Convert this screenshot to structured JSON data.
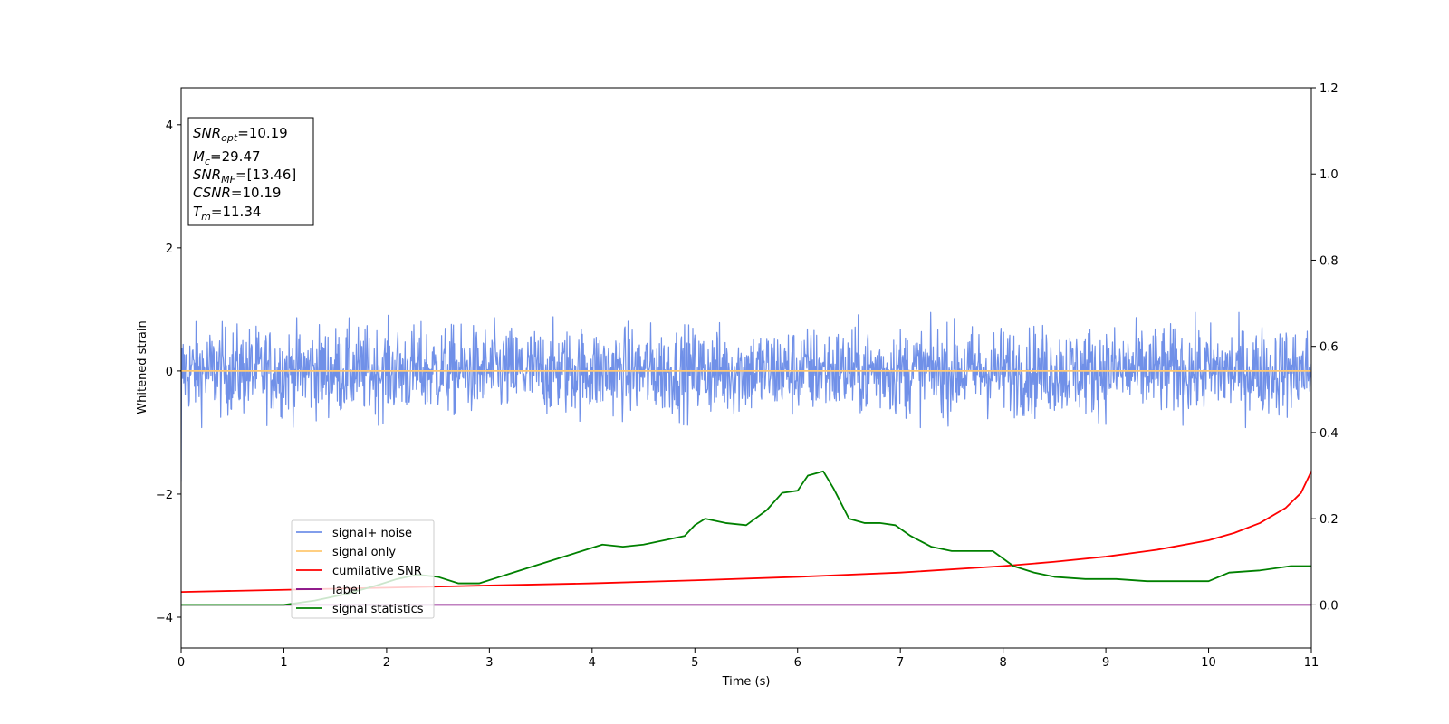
{
  "chart_data": {
    "type": "line",
    "xlabel": "Time (s)",
    "ylabel": "Whitened strain",
    "xlim": [
      0,
      11
    ],
    "ylim_left": [
      -4.5,
      4.6
    ],
    "ylim_right": [
      -0.1,
      1.2
    ],
    "x_ticks": [
      "0",
      "1",
      "2",
      "3",
      "4",
      "5",
      "6",
      "7",
      "8",
      "9",
      "10",
      "11"
    ],
    "y_ticks_left": [
      "4",
      "2",
      "0",
      "−2",
      "−4"
    ],
    "y_ticks_left_values": [
      4,
      2,
      0,
      -2,
      -4
    ],
    "y_ticks_right": [
      "1.2",
      "1.0",
      "0.8",
      "0.6",
      "0.4",
      "0.2",
      "0.0"
    ],
    "y_ticks_right_values": [
      1.2,
      1.0,
      0.8,
      0.6,
      0.4,
      0.2,
      0.0
    ],
    "grid": false,
    "legend_position": "lower-left",
    "series": [
      {
        "name": "signal+ noise",
        "color": "#7090e8",
        "axis": "left",
        "kind": "noise",
        "amplitude": 0.35,
        "peak_max": 0.95,
        "peak_min": -0.92
      },
      {
        "name": "signal only",
        "color": "#ffc870",
        "axis": "left",
        "kind": "flat",
        "value": 0
      },
      {
        "name": "cumilative SNR",
        "color": "#ff0000",
        "axis": "right",
        "x": [
          0,
          1,
          2,
          3,
          4,
          5,
          6,
          7,
          8,
          8.5,
          9,
          9.5,
          10,
          10.25,
          10.5,
          10.75,
          10.9,
          11
        ],
        "y": [
          0.03,
          0.035,
          0.04,
          0.045,
          0.05,
          0.057,
          0.065,
          0.075,
          0.09,
          0.1,
          0.112,
          0.128,
          0.15,
          0.167,
          0.19,
          0.225,
          0.26,
          0.31
        ]
      },
      {
        "name": "label",
        "color": "#800080",
        "axis": "right",
        "x": [
          0,
          11
        ],
        "y": [
          0,
          0
        ]
      },
      {
        "name": "signal statistics",
        "color": "#008000",
        "axis": "right",
        "x": [
          0,
          0.5,
          1,
          1.3,
          1.6,
          1.9,
          2.1,
          2.3,
          2.5,
          2.7,
          2.9,
          3.1,
          3.3,
          3.5,
          3.7,
          3.9,
          4.1,
          4.3,
          4.5,
          4.7,
          4.9,
          5.0,
          5.1,
          5.3,
          5.5,
          5.7,
          5.85,
          6.0,
          6.1,
          6.25,
          6.35,
          6.5,
          6.65,
          6.8,
          6.95,
          7.1,
          7.3,
          7.5,
          7.7,
          7.9,
          8.1,
          8.3,
          8.5,
          8.8,
          9.1,
          9.4,
          9.7,
          10.0,
          10.2,
          10.5,
          10.8,
          11
        ],
        "y": [
          0,
          0,
          0.0,
          0.01,
          0.025,
          0.045,
          0.06,
          0.07,
          0.065,
          0.05,
          0.05,
          0.065,
          0.08,
          0.095,
          0.11,
          0.125,
          0.14,
          0.135,
          0.14,
          0.15,
          0.16,
          0.185,
          0.2,
          0.19,
          0.185,
          0.22,
          0.26,
          0.265,
          0.3,
          0.31,
          0.27,
          0.2,
          0.19,
          0.19,
          0.185,
          0.16,
          0.135,
          0.125,
          0.125,
          0.125,
          0.09,
          0.075,
          0.065,
          0.06,
          0.06,
          0.055,
          0.055,
          0.055,
          0.075,
          0.08,
          0.09,
          0.09
        ]
      }
    ],
    "info_box": {
      "snr_opt_sym": "SNR",
      "snr_opt_sub": "opt",
      "snr_opt_value": "=10.19",
      "mc_sym": "M",
      "mc_sub": "c",
      "mc_value": "=29.47",
      "snr_mf_sym": "SNR",
      "snr_mf_sub": "MF",
      "snr_mf_value": "=[13.46]",
      "csnr_sym": "CSNR",
      "csnr_value": "=10.19",
      "tm_sym": "T",
      "tm_sub": "m",
      "tm_value": "=11.34"
    }
  }
}
